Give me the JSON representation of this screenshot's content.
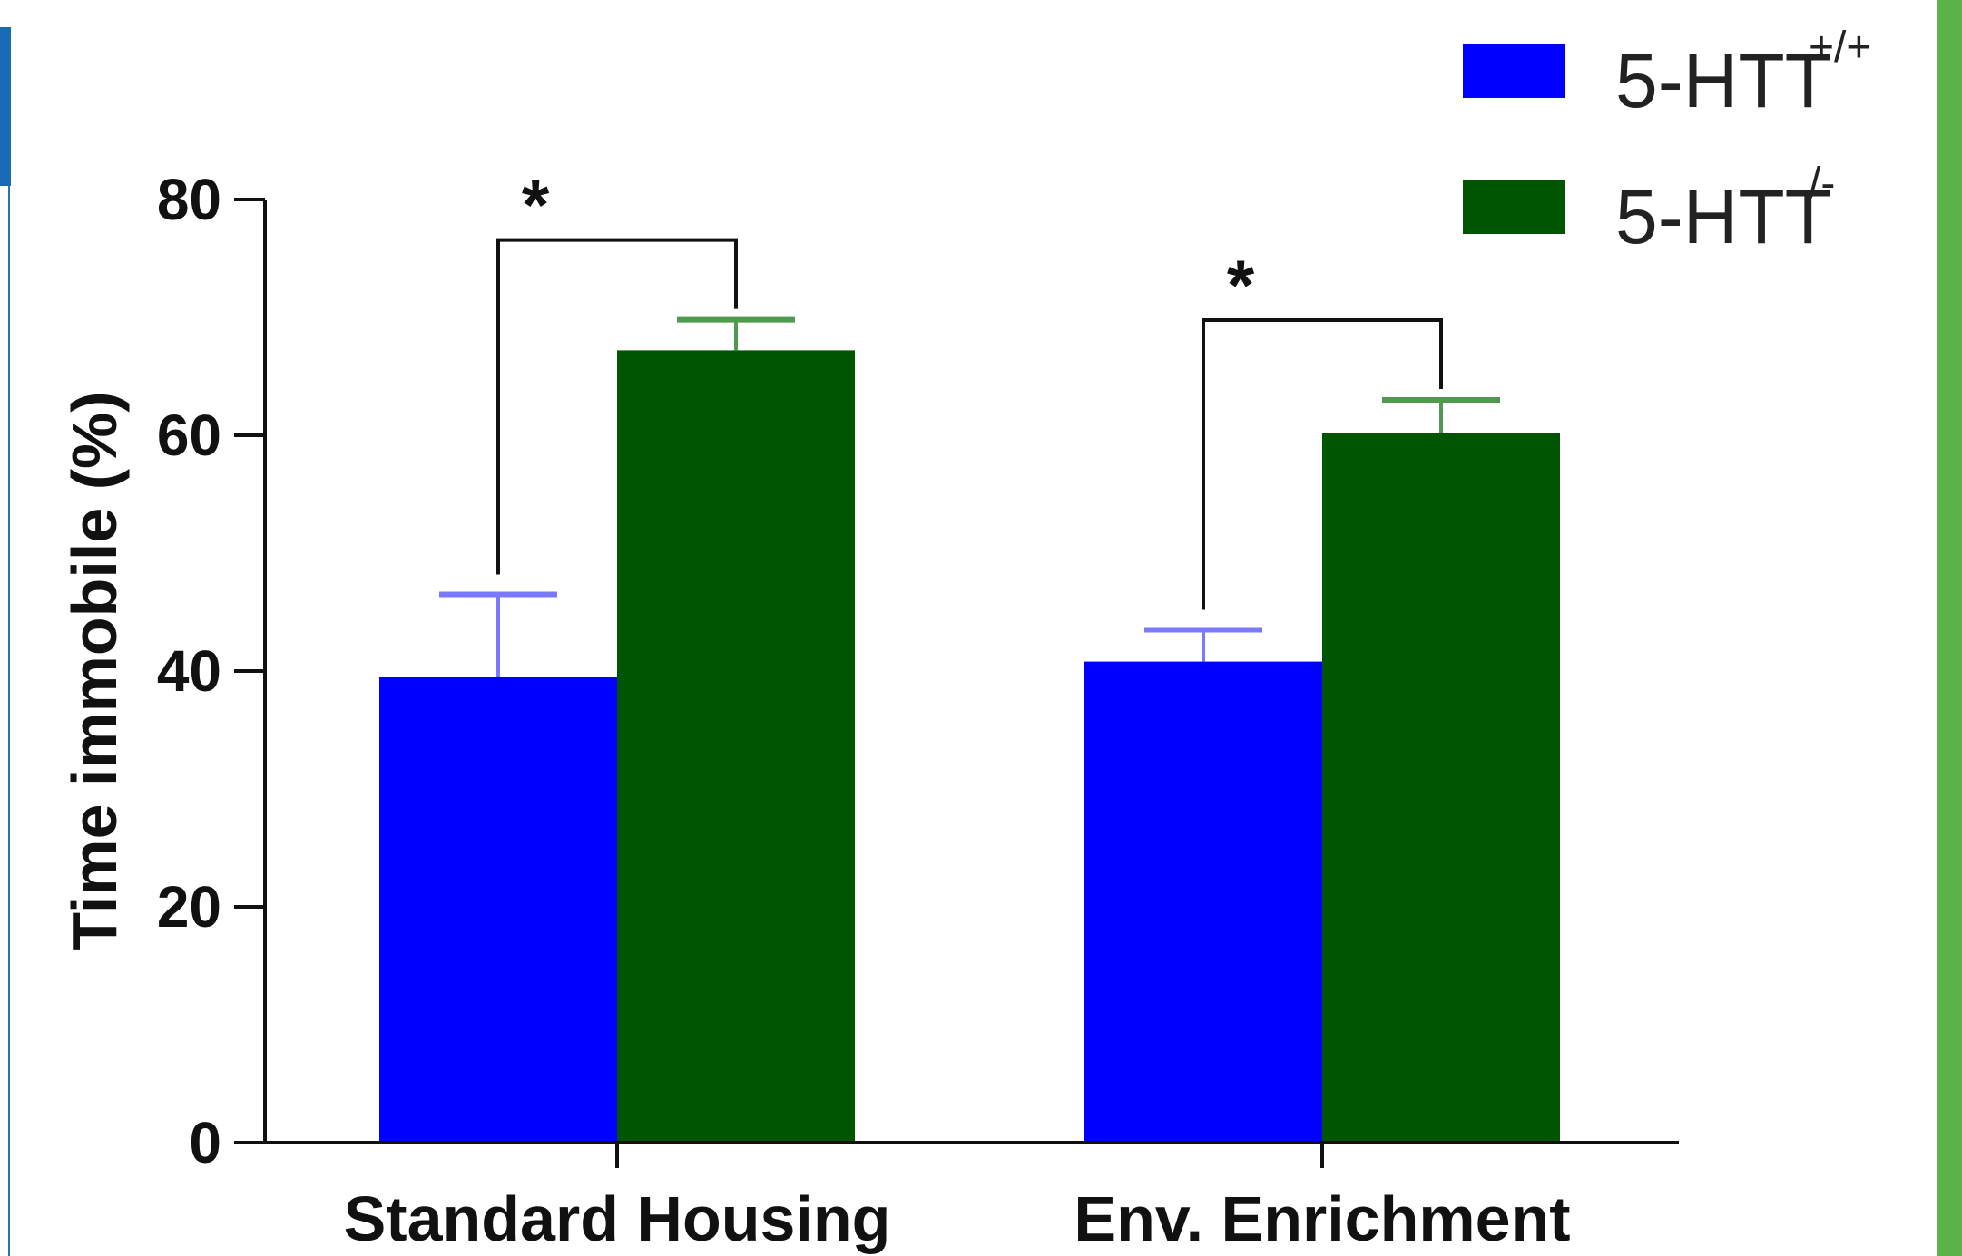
{
  "chart_data": {
    "type": "bar",
    "categories": [
      "Standard Housing",
      "Env. Enrichment"
    ],
    "series": [
      {
        "name": "5-HTT",
        "superscript": "+/+",
        "color": "#0000ff",
        "error_color": "#7a7aff",
        "values": [
          39.5,
          40.8
        ],
        "errors": [
          7.0,
          2.7
        ]
      },
      {
        "name": "5-HTT",
        "superscript": "/-",
        "color": "#005500",
        "error_color": "#4f9a4f",
        "values": [
          67.2,
          60.2
        ],
        "errors": [
          2.6,
          2.8
        ]
      }
    ],
    "ylabel": "Time immobile (%)",
    "xlabel": "",
    "ylim": [
      0,
      80
    ],
    "yticks": [
      "0",
      "20",
      "40",
      "60",
      "80"
    ],
    "ytick_values": [
      0,
      20,
      40,
      60,
      80
    ],
    "significance": [
      {
        "category": "Standard Housing",
        "label": "*"
      },
      {
        "category": "Env. Enrichment",
        "label": "*"
      }
    ],
    "legend_position": "top-right",
    "grid": false
  },
  "frame": {
    "left_accent_color": "#1a6bb5",
    "left_rule_color": "#2f6fb3",
    "right_accent_color": "#5cb34a"
  }
}
